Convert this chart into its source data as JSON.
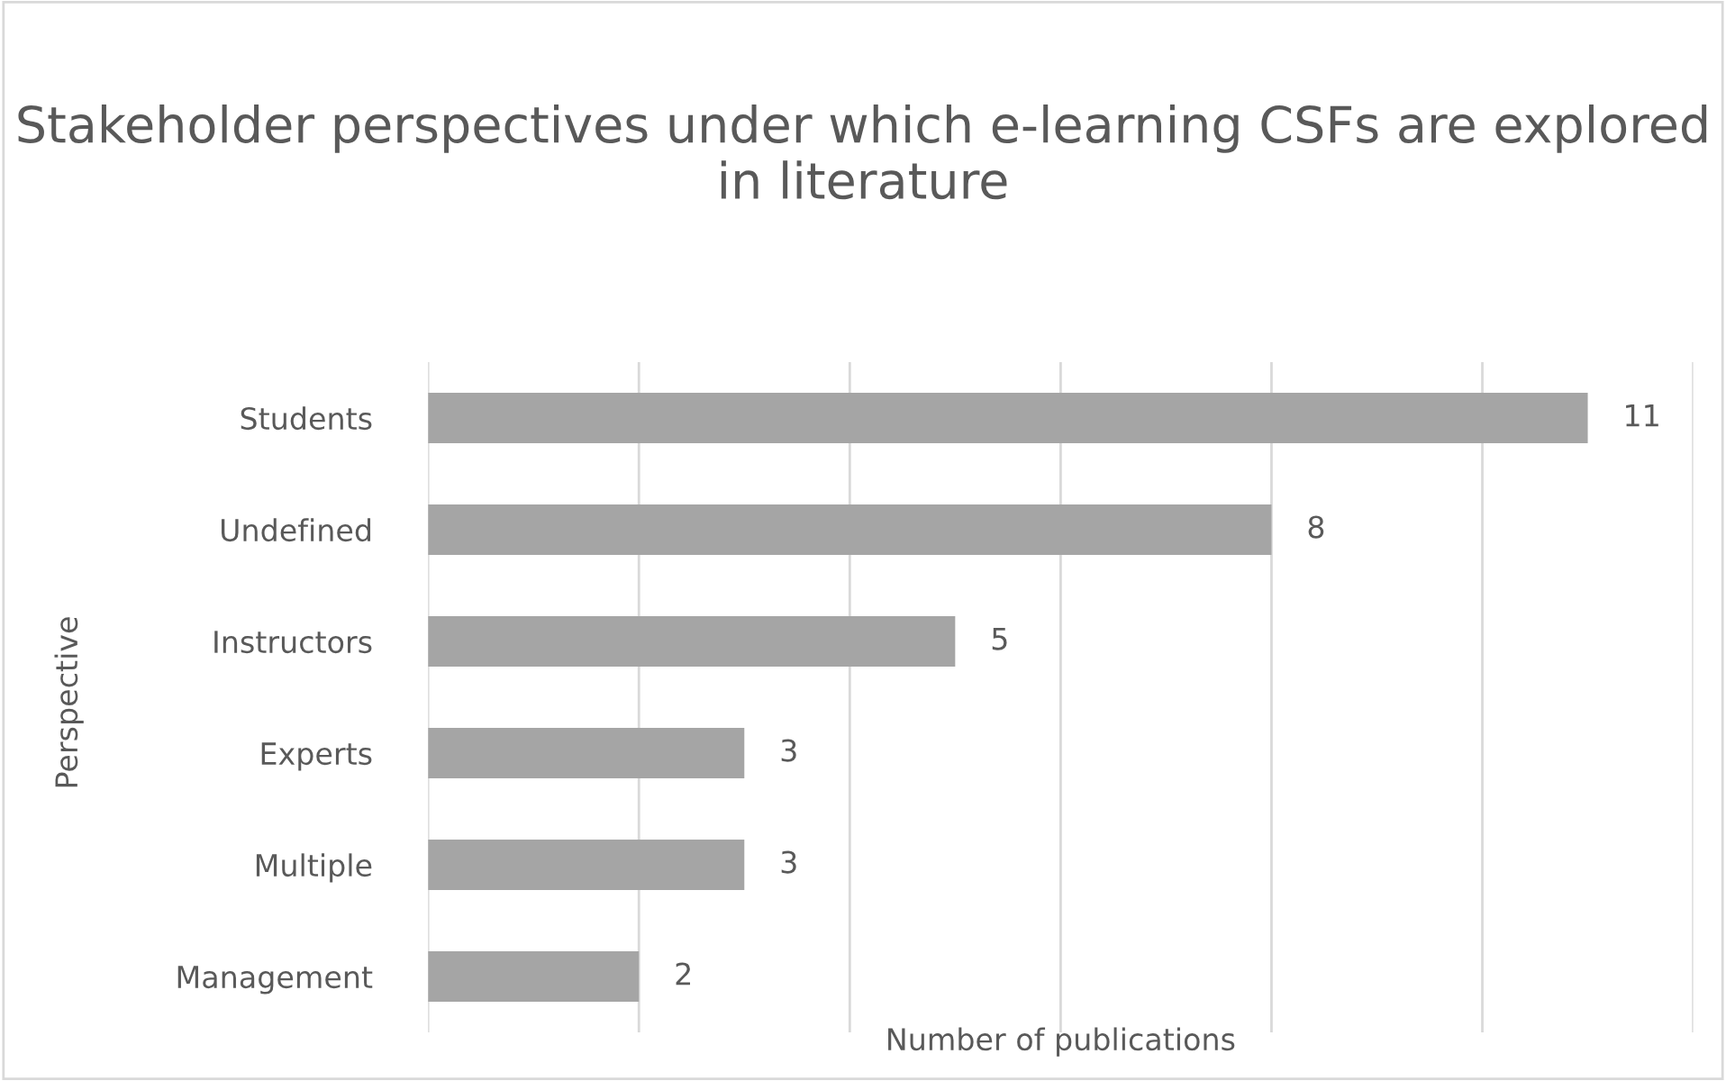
{
  "chart_data": {
    "type": "bar",
    "orientation": "horizontal",
    "title": "Stakeholder perspectives under which e-learning CSFs are explored in literature",
    "xlabel": "Number of publications",
    "ylabel": "Perspective",
    "categories": [
      "Students",
      "Undefined",
      "Instructors",
      "Experts",
      "Multiple",
      "Management"
    ],
    "values": [
      11,
      8,
      5,
      3,
      3,
      2
    ],
    "color": "#a5a5a5",
    "xlim": [
      0,
      12
    ],
    "xticks": [
      {
        "value": 0,
        "label": null
      },
      {
        "value": 2,
        "label": null
      },
      {
        "value": 4,
        "label": null
      },
      {
        "value": 6,
        "label": null
      },
      {
        "value": 8,
        "label": null
      },
      {
        "value": 10,
        "label": null
      },
      {
        "value": 12,
        "label": null
      }
    ],
    "tick_labels": "y",
    "grid": "x",
    "data_labels": true,
    "legend": false
  }
}
